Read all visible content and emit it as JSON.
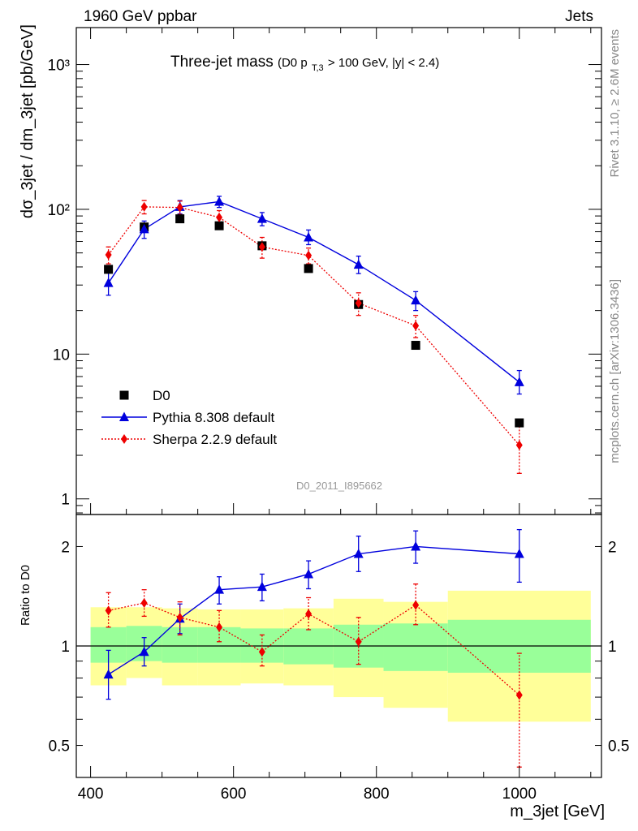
{
  "header": {
    "left": "1960 GeV ppbar",
    "right": "Jets"
  },
  "side_labels": {
    "rivet": "Rivet 3.1.10, ≥ 2.6M events",
    "mcplots": "mcplots.cern.ch [arXiv:1306.3436]"
  },
  "plot_title": {
    "main": "Three-jet mass",
    "cut_prefix": "(D0 p",
    "cut_sub": "T,3",
    "cut_suffix": " > 100 GeV, |y| < 2.4)"
  },
  "analysis_id": "D0_2011_I895662",
  "colors": {
    "data": "#000000",
    "pythia": "#0000dd",
    "sherpa": "#ee0000",
    "band_inner": "#99ff99",
    "band_outer": "#ffff99"
  },
  "chart_data": [
    {
      "type": "scatter",
      "panel": "main",
      "yscale": "log",
      "ylabel": "dσ_3jet / dm_3jet [pb/GeV]",
      "xlim": [
        380,
        1115
      ],
      "ylim": [
        0.78,
        1800
      ],
      "y_ticks": [
        {
          "value": 1,
          "label": "1"
        },
        {
          "value": 10,
          "label": "10"
        },
        {
          "value": 100,
          "label": "10²"
        },
        {
          "value": 1000,
          "label": "10³"
        }
      ],
      "legend_position": "bottom-left",
      "series": [
        {
          "name": "D0",
          "marker": "square",
          "x": [
            425,
            475,
            525,
            580,
            640,
            705,
            775,
            855,
            1000
          ],
          "y": [
            38.5,
            75.5,
            86,
            77,
            56,
            39,
            22,
            11.5,
            3.35
          ]
        },
        {
          "name": "Pythia 8.308 default",
          "marker": "triangle",
          "line": "solid",
          "x": [
            425,
            475,
            525,
            580,
            640,
            705,
            775,
            855,
            1000
          ],
          "y": [
            31,
            73,
            104,
            113,
            86,
            64,
            41.5,
            23.5,
            6.4
          ],
          "err_lo": [
            25.5,
            63,
            93,
            103,
            77,
            57,
            36,
            20,
            5.3
          ],
          "err_hi": [
            36.5,
            83,
            115,
            123,
            95,
            72,
            47.5,
            27,
            7.7
          ]
        },
        {
          "name": "Sherpa 2.2.9 default",
          "marker": "diamond",
          "line": "dotted",
          "x": [
            425,
            475,
            525,
            580,
            640,
            705,
            775,
            855,
            1000
          ],
          "y": [
            48.5,
            104,
            103,
            88,
            55,
            48,
            22.5,
            15.7,
            2.35
          ],
          "err_lo": [
            42,
            93,
            92,
            78,
            46,
            42,
            18.5,
            13,
            1.5
          ],
          "err_hi": [
            55,
            115,
            114,
            98,
            64,
            54,
            26.5,
            18.5,
            3.2
          ]
        }
      ]
    },
    {
      "type": "scatter",
      "panel": "ratio",
      "yscale": "log",
      "xlabel": "m_3jet [GeV]",
      "ylabel": "Ratio to D0",
      "xlim": [
        380,
        1115
      ],
      "ylim": [
        0.4,
        2.5
      ],
      "x_ticks": [
        {
          "value": 400,
          "label": "400"
        },
        {
          "value": 600,
          "label": "600"
        },
        {
          "value": 800,
          "label": "800"
        },
        {
          "value": 1000,
          "label": "1000"
        }
      ],
      "y_ticks": [
        {
          "value": 0.5,
          "label": "0.5"
        },
        {
          "value": 1,
          "label": "1"
        },
        {
          "value": 2,
          "label": "2"
        }
      ],
      "bands": [
        {
          "x0": 400,
          "x1": 450,
          "inner": [
            0.89,
            1.14
          ],
          "outer": [
            0.76,
            1.31
          ]
        },
        {
          "x0": 450,
          "x1": 500,
          "inner": [
            0.9,
            1.15
          ],
          "outer": [
            0.8,
            1.31
          ]
        },
        {
          "x0": 500,
          "x1": 550,
          "inner": [
            0.89,
            1.14
          ],
          "outer": [
            0.76,
            1.3
          ]
        },
        {
          "x0": 550,
          "x1": 610,
          "inner": [
            0.89,
            1.14
          ],
          "outer": [
            0.76,
            1.29
          ]
        },
        {
          "x0": 610,
          "x1": 670,
          "inner": [
            0.89,
            1.13
          ],
          "outer": [
            0.77,
            1.29
          ]
        },
        {
          "x0": 670,
          "x1": 740,
          "inner": [
            0.88,
            1.13
          ],
          "outer": [
            0.76,
            1.3
          ]
        },
        {
          "x0": 740,
          "x1": 810,
          "inner": [
            0.86,
            1.16
          ],
          "outer": [
            0.7,
            1.39
          ]
        },
        {
          "x0": 810,
          "x1": 900,
          "inner": [
            0.84,
            1.17
          ],
          "outer": [
            0.65,
            1.36
          ]
        },
        {
          "x0": 900,
          "x1": 1100,
          "inner": [
            0.83,
            1.2
          ],
          "outer": [
            0.59,
            1.47
          ]
        }
      ],
      "series": [
        {
          "name": "Pythia 8.308 default",
          "marker": "triangle",
          "line": "solid",
          "x": [
            425,
            475,
            525,
            580,
            640,
            705,
            775,
            855,
            1000
          ],
          "y": [
            0.82,
            0.96,
            1.21,
            1.48,
            1.51,
            1.65,
            1.9,
            2.0,
            1.9
          ],
          "err_lo": [
            0.69,
            0.87,
            1.09,
            1.34,
            1.37,
            1.49,
            1.68,
            1.78,
            1.56
          ],
          "err_hi": [
            0.97,
            1.06,
            1.34,
            1.62,
            1.65,
            1.81,
            2.15,
            2.23,
            2.25
          ]
        },
        {
          "name": "Sherpa 2.2.9 default",
          "marker": "diamond",
          "line": "dotted",
          "x": [
            425,
            475,
            525,
            580,
            640,
            705,
            775,
            855,
            1000
          ],
          "y": [
            1.28,
            1.35,
            1.22,
            1.14,
            0.96,
            1.25,
            1.03,
            1.33,
            0.71
          ],
          "err_lo": [
            1.14,
            1.23,
            1.08,
            1.03,
            0.87,
            1.12,
            0.88,
            1.16,
            0.43
          ],
          "err_hi": [
            1.45,
            1.48,
            1.36,
            1.28,
            1.08,
            1.4,
            1.22,
            1.54,
            0.95
          ]
        }
      ]
    }
  ]
}
